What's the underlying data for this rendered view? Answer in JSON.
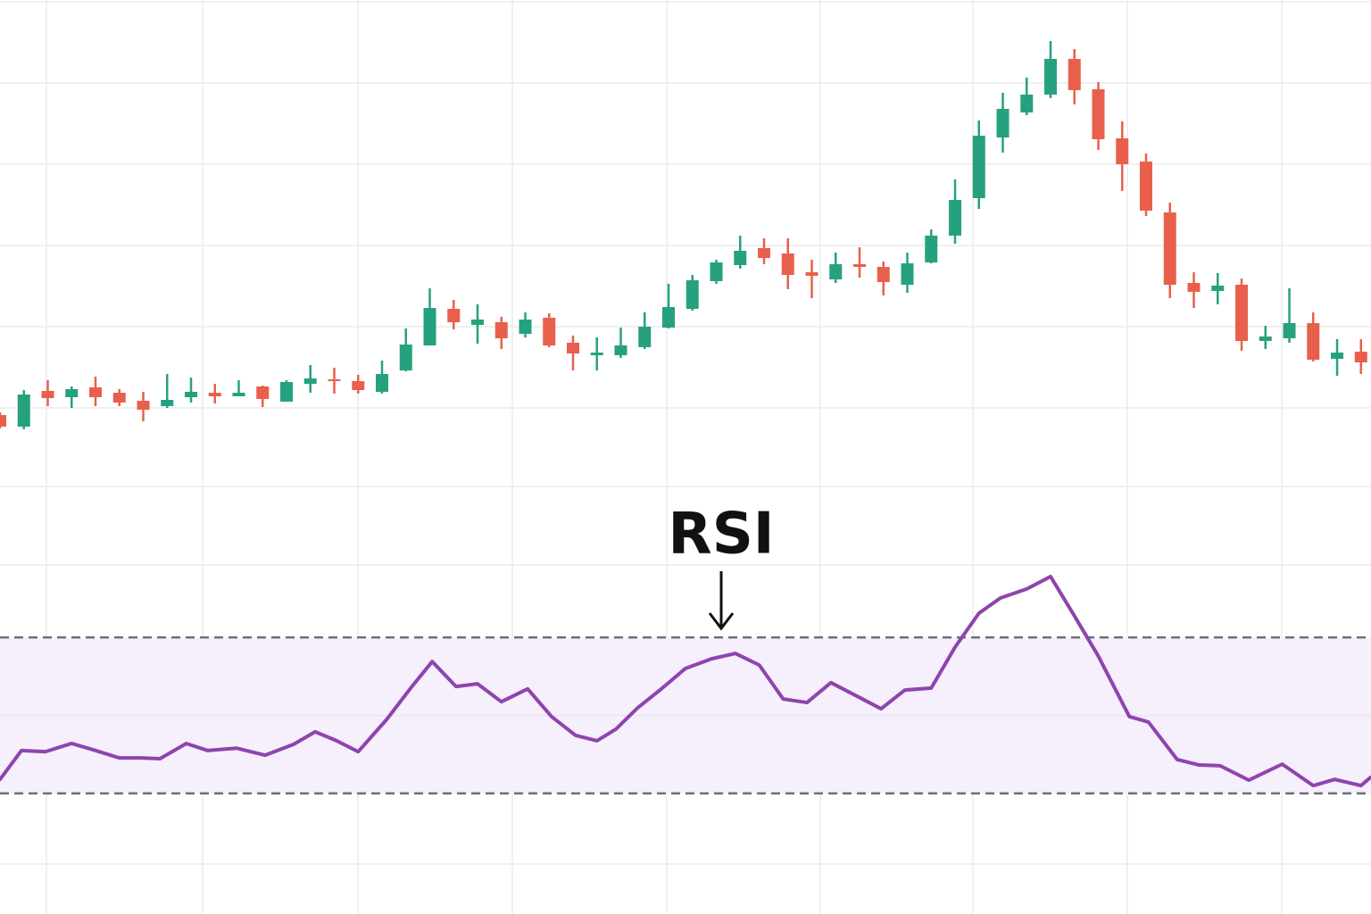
{
  "chart_data": [
    {
      "type": "candlestick",
      "x": [
        0,
        1,
        2,
        3,
        4,
        5,
        6,
        7,
        8,
        9,
        10,
        11,
        12,
        13,
        14,
        15,
        16,
        17,
        18,
        19,
        20,
        21,
        22,
        23,
        24,
        25,
        26,
        27,
        28,
        29,
        30,
        31,
        32,
        33,
        34,
        35,
        36,
        37,
        38,
        39,
        40,
        41,
        42,
        43,
        44,
        45,
        46,
        47,
        48,
        49,
        50,
        51,
        52,
        53,
        54,
        55,
        56,
        57
      ],
      "open": [
        559,
        546,
        586,
        579,
        590,
        584,
        575,
        569,
        579,
        584,
        580,
        591,
        574,
        594,
        599,
        597,
        585,
        609,
        637,
        678,
        660,
        663,
        650,
        668,
        640,
        626,
        626,
        635,
        657,
        678,
        709,
        727,
        746,
        740,
        719,
        711,
        728,
        725,
        705,
        730,
        760,
        802,
        870,
        898,
        918,
        958,
        924,
        869,
        843,
        786,
        707,
        698,
        705,
        642,
        645,
        662,
        622,
        630
      ],
      "high": [
        562,
        587,
        598,
        591,
        602,
        588,
        585,
        605,
        601,
        594,
        598,
        592,
        598,
        615,
        612,
        604,
        620,
        656,
        701,
        688,
        683,
        669,
        674,
        673,
        648,
        646,
        657,
        674,
        706,
        716,
        733,
        760,
        757,
        757,
        733,
        741,
        747,
        731,
        741,
        767,
        823,
        889,
        920,
        937,
        978,
        969,
        932,
        888,
        852,
        797,
        719,
        718,
        712,
        659,
        701,
        674,
        644,
        644
      ],
      "low": [
        544,
        543,
        569,
        567,
        569,
        569,
        552,
        567,
        573,
        572,
        580,
        568,
        574,
        584,
        583,
        583,
        583,
        608,
        637,
        655,
        639,
        633,
        646,
        635,
        609,
        609,
        623,
        633,
        656,
        676,
        706,
        723,
        728,
        700,
        690,
        707,
        713,
        693,
        696,
        729,
        751,
        790,
        853,
        895,
        914,
        907,
        856,
        810,
        782,
        690,
        679,
        683,
        631,
        633,
        640,
        619,
        603,
        605
      ],
      "close": [
        546,
        582,
        578,
        588,
        579,
        573,
        565,
        576,
        585,
        580,
        584,
        577,
        596,
        600,
        597,
        587,
        605,
        638,
        679,
        663,
        666,
        645,
        666,
        637,
        628,
        629,
        637,
        658,
        680,
        710,
        730,
        743,
        735,
        716,
        715,
        728,
        725,
        708,
        729,
        760,
        800,
        872,
        902,
        918,
        958,
        923,
        868,
        840,
        788,
        705,
        697,
        704,
        642,
        647,
        662,
        621,
        629,
        618
      ],
      "up_color": "#26a17f",
      "down_color": "#e8604c",
      "xlim": [
        0,
        57.42
      ],
      "ylim": [
        0,
        1024
      ]
    },
    {
      "type": "line",
      "title": "RSI",
      "x": [
        0,
        0.9,
        1.9,
        3.0,
        4.0,
        5.0,
        5.9,
        6.7,
        7.8,
        8.7,
        9.9,
        11.1,
        12.3,
        13.2,
        14.1,
        15.0,
        16.2,
        17.2,
        18.1,
        19.1,
        20.0,
        21.0,
        22.1,
        23.1,
        24.1,
        25.0,
        25.8,
        26.7,
        27.7,
        28.7,
        29.8,
        30.8,
        31.8,
        32.8,
        33.8,
        34.8,
        35.9,
        36.9,
        37.9,
        39.0,
        40.0,
        41.0,
        41.9,
        43.0,
        44.0,
        45.0,
        46.0,
        47.3,
        48.1,
        49.3,
        50.2,
        51.1,
        52.3,
        53.7,
        55.0,
        55.9,
        57.0,
        57.4
      ],
      "values": [
        33.6,
        41.0,
        40.7,
        42.8,
        41.0,
        39.1,
        39.1,
        38.9,
        42.8,
        41.0,
        41.6,
        39.8,
        42.6,
        45.8,
        43.5,
        40.7,
        49.0,
        57.0,
        63.8,
        57.4,
        58.1,
        53.5,
        56.8,
        49.7,
        44.9,
        43.5,
        46.5,
        51.9,
        56.8,
        62.0,
        64.5,
        65.9,
        62.9,
        54.2,
        53.3,
        58.4,
        54.9,
        51.7,
        56.5,
        57.0,
        67.5,
        76.2,
        80.1,
        82.4,
        85.6,
        75.5,
        65.2,
        49.7,
        48.3,
        38.7,
        37.3,
        37.1,
        33.4,
        37.5,
        32.0,
        33.6,
        32.0,
        34.1
      ],
      "color": "#8e44ad",
      "band_color": "#f6effc",
      "bands": [
        30,
        70
      ],
      "xlim": [
        0,
        57.42
      ],
      "ylim": [
        0,
        100
      ]
    }
  ]
}
